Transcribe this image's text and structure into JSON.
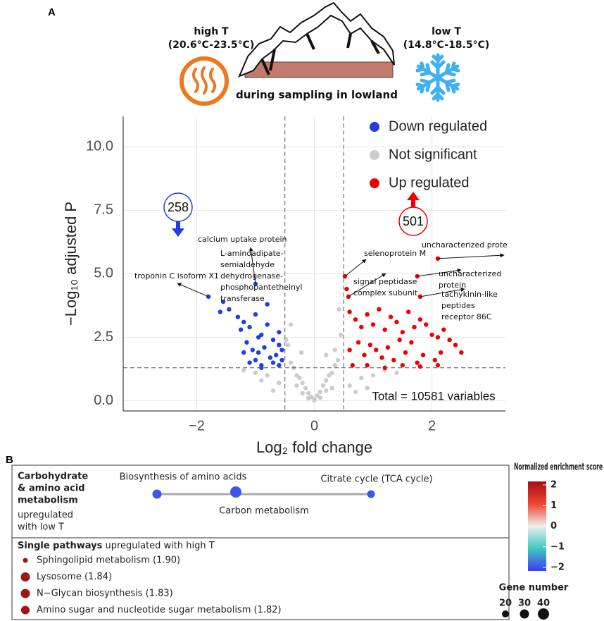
{
  "panel_a": {
    "label": "A",
    "illustration": {
      "high_t": "high T",
      "high_t_range": "(20.6°C-23.5°C)",
      "low_t": "low T",
      "low_t_range": "(14.8°C-18.5°C)",
      "caption": "during sampling in lowland"
    }
  },
  "chart_data": {
    "type": "scatter",
    "xlabel": "Log₂ fold change",
    "ylabel": "−Log₁₀ adjusted P",
    "xlim": [
      -3.25,
      3.25
    ],
    "ylim": [
      -0.4,
      11.2
    ],
    "xticks": [
      {
        "value": -2,
        "label": "−2"
      },
      0,
      2
    ],
    "yticks": [
      {
        "value": 0,
        "label": "0.0"
      },
      {
        "value": 2.5,
        "label": "2.5"
      },
      {
        "value": 5,
        "label": "5.0"
      },
      {
        "value": 7.5,
        "label": "7.5"
      },
      {
        "value": 10,
        "label": "10.0"
      }
    ],
    "grid": true,
    "vlines": [
      -0.5,
      0.5
    ],
    "hlines": [
      1.3
    ],
    "series": [
      {
        "name": "Down regulated",
        "color": "#1f3fe0",
        "x": [
          -1.8,
          -1.55,
          -1.6,
          -1.45,
          -1.3,
          -1.2,
          -1.1,
          -1.0,
          -0.9,
          -0.8,
          -0.7,
          -0.6,
          -0.55,
          -1.25,
          -1.15,
          -1.05,
          -0.95,
          -0.85,
          -0.75,
          -0.65,
          -0.6,
          -1.1,
          -0.9,
          -0.7,
          -1.0,
          -0.8,
          -0.6,
          -1.2,
          -0.95,
          -0.55,
          -1.0,
          -0.9
        ],
        "values": [
          4.1,
          3.9,
          3.5,
          3.6,
          3.3,
          3.1,
          2.9,
          3.4,
          2.6,
          3.0,
          2.4,
          2.2,
          1.6,
          2.8,
          2.3,
          2.0,
          1.9,
          2.1,
          1.7,
          1.8,
          1.4,
          1.5,
          1.4,
          1.5,
          4.6,
          3.8,
          2.7,
          1.9,
          2.5,
          2.0,
          1.6,
          1.3
        ]
      },
      {
        "name": "Not significant",
        "color": "#cccccc",
        "x": [
          0,
          -0.1,
          0.1,
          -0.2,
          0.2,
          -0.3,
          0.3,
          -0.4,
          0.4,
          -0.45,
          0.45,
          -0.05,
          0.05,
          -0.15,
          0.15,
          -0.25,
          0.25,
          -0.35,
          0.35,
          0.0,
          -0.1,
          0.1,
          -0.2,
          0.2,
          0.3,
          -0.3,
          -0.6,
          -0.8,
          -1.0,
          -1.2,
          0.6,
          0.8,
          1.0,
          1.2,
          1.4,
          -0.7,
          -0.9,
          0.7,
          0.9,
          0.35,
          -0.4,
          0.42,
          -0.48,
          0.2,
          -0.22
        ],
        "values": [
          0.05,
          0.3,
          0.35,
          0.7,
          0.8,
          1.0,
          1.1,
          1.5,
          1.6,
          2.2,
          2.6,
          0.15,
          0.2,
          0.5,
          0.6,
          0.9,
          1.0,
          1.3,
          1.4,
          0.02,
          0.1,
          0.12,
          0.3,
          0.4,
          0.5,
          0.6,
          0.7,
          1.0,
          1.1,
          1.2,
          0.6,
          0.9,
          1.0,
          1.2,
          1.1,
          0.4,
          0.8,
          0.35,
          0.5,
          2.0,
          3.0,
          3.6,
          2.4,
          1.8,
          1.9
        ]
      },
      {
        "name": "Up regulated",
        "color": "#ee0000",
        "x": [
          0.52,
          0.55,
          0.6,
          0.7,
          0.8,
          0.9,
          1.0,
          1.1,
          1.2,
          1.3,
          1.4,
          1.5,
          1.6,
          1.7,
          1.8,
          1.9,
          2.0,
          2.1,
          2.2,
          2.3,
          2.4,
          2.5,
          0.6,
          0.75,
          0.85,
          0.95,
          1.05,
          1.15,
          1.25,
          1.35,
          1.45,
          1.55,
          1.65,
          1.75,
          1.85,
          2.05,
          2.15,
          0.65,
          0.9,
          1.2,
          1.5,
          1.8,
          2.1,
          1.75,
          1.8,
          0.58,
          2.1
        ],
        "values": [
          4.9,
          4.4,
          3.5,
          3.2,
          2.9,
          3.4,
          3.0,
          3.6,
          2.8,
          3.3,
          3.1,
          2.7,
          3.5,
          2.9,
          3.2,
          3.0,
          2.6,
          2.5,
          2.8,
          2.4,
          2.2,
          1.9,
          2.0,
          2.3,
          1.8,
          2.2,
          2.0,
          1.7,
          2.1,
          1.6,
          2.4,
          1.9,
          2.3,
          1.5,
          1.8,
          1.6,
          1.9,
          1.4,
          1.4,
          1.3,
          1.4,
          1.35,
          1.4,
          4.9,
          4.1,
          4.1,
          5.6
        ]
      }
    ],
    "down_count": 258,
    "up_count": 501,
    "total_label": "Total = 10581 variables",
    "annotations": [
      {
        "lines": [
          "troponin C isoform X1"
        ],
        "x": -1.8,
        "y": 4.1
      },
      {
        "lines": [
          "calcium uptake protein"
        ],
        "x": -1.0,
        "y": 4.6
      },
      {
        "lines": [
          "L-aminoadipate-",
          "semialdehyde",
          "dehydrogenase-",
          "phosphopantetheinyl",
          "transferase"
        ]
      },
      {
        "lines": [
          "selenoprotein M"
        ],
        "x": 0.52,
        "y": 4.9
      },
      {
        "lines": [
          "signal peptidase",
          "complex subunit"
        ],
        "x": 0.58,
        "y": 4.1
      },
      {
        "lines": [
          "uncharacterized prote"
        ],
        "x": 2.1,
        "y": 5.6
      },
      {
        "lines": [
          "uncharacterized",
          "protein"
        ],
        "x": 1.75,
        "y": 4.9
      },
      {
        "lines": [
          "tachykinin-like",
          "peptides",
          "receptor 86C"
        ],
        "x": 1.8,
        "y": 4.1
      }
    ]
  },
  "panel_b": {
    "label": "B",
    "group": {
      "title_lines": [
        "Carbohydrate",
        "& amino acid",
        "metabolism"
      ],
      "subtitle_lines": [
        "upregulated",
        "with low T"
      ],
      "nodes": [
        {
          "label": "Biosynthesis of amino acids",
          "nes": -1.8,
          "gene_number": 30
        },
        {
          "label": "Carbon metabolism",
          "nes": -1.8,
          "gene_number": 40
        },
        {
          "label": "Citrate cycle (TCA cycle)",
          "nes": -1.8,
          "gene_number": 23
        }
      ]
    },
    "single": {
      "title": "Single pathways",
      "subtitle": " upregulated with high T",
      "items": [
        {
          "label": "Sphingolipid metabolism (1.90)",
          "gene_number": 10,
          "color": "#a01515"
        },
        {
          "label": "Lysosome (1.84)",
          "gene_number": 30,
          "color": "#a01515"
        },
        {
          "label": "N−Glycan biosynthesis (1.83)",
          "gene_number": 30,
          "color": "#a01515"
        },
        {
          "label": "Amino sugar and nucleotide sugar metabolism (1.82)",
          "gene_number": 27,
          "color": "#a01515"
        }
      ]
    },
    "nes_legend": {
      "title": "Normalized enrichment score",
      "lim": [
        -2,
        2
      ],
      "ticks": [
        2,
        1,
        0,
        {
          "value": -1,
          "label": "−1"
        },
        {
          "value": -2,
          "label": "−2"
        }
      ]
    },
    "size_legend": {
      "title": "Gene number",
      "values": [
        20,
        30,
        40
      ]
    }
  }
}
